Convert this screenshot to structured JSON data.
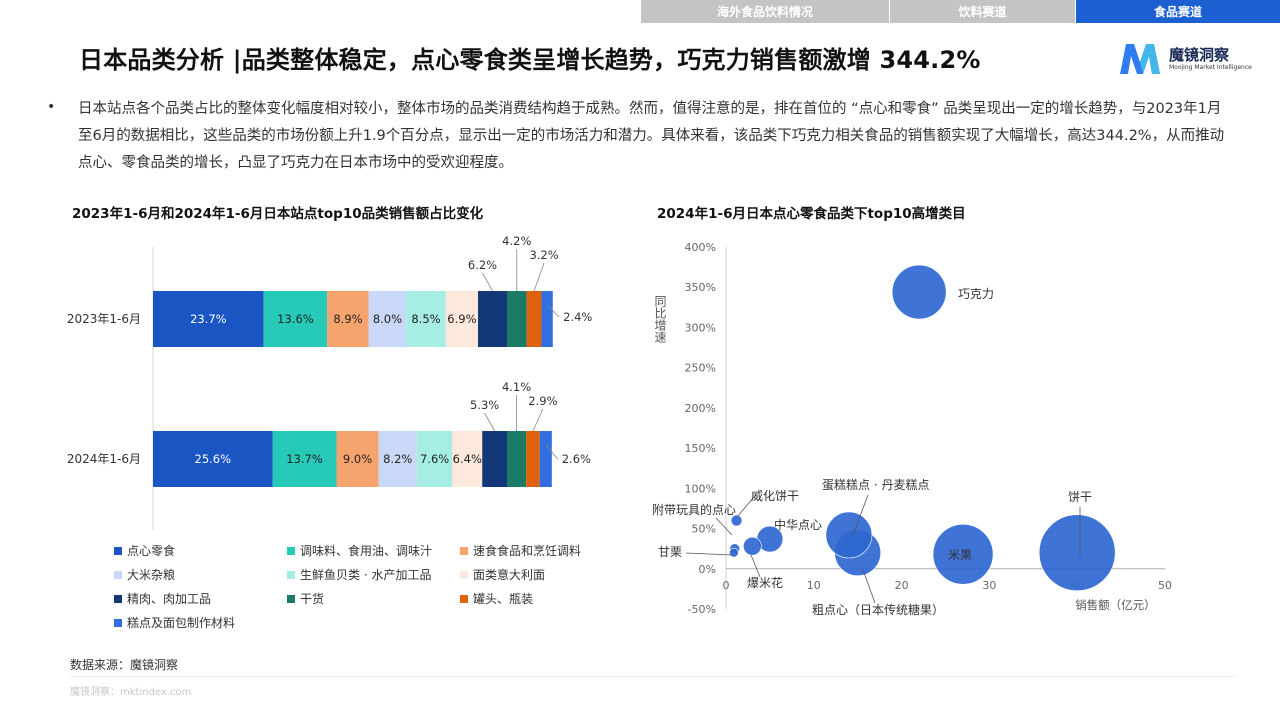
{
  "nav": {
    "tabs": [
      {
        "label": "海外食品饮料情况",
        "active": false
      },
      {
        "label": "饮料赛道",
        "active": false
      },
      {
        "label": "食品赛道",
        "active": true
      }
    ]
  },
  "title": "日本品类分析 |品类整体稳定，点心零食类呈增长趋势，巧克力销售额激增 344.2%",
  "logo": {
    "name": "魔镜洞察",
    "sub": "Moojing Market Intelligence"
  },
  "paragraph": "日本站点各个品类占比的整体变化幅度相对较小，整体市场的品类消费结构趋于成熟。然而，值得注意的是，排在首位的 “点心和零食” 品类呈现出一定的增长趋势，与2023年1月至6月的数据相比，这些品类的市场份额上升1.9个百分点，显示出一定的市场活力和潜力。具体来看，该品类下巧克力相关食品的销售额实现了大幅增长，高达344.2%，从而推动点心、零食品类的增长，凸显了巧克力在日本市场中的受欢迎程度。",
  "bullet": "•",
  "source": "数据来源：魔镜洞察",
  "footer": "魔镜洞察：mktindex.com",
  "colors": {
    "accent": "#1b5fd1",
    "bubble": "#2f67d1"
  },
  "chart_data": [
    {
      "type": "bar",
      "stacked": true,
      "orientation": "horizontal",
      "title": "2023年1-6月和2024年1-6月日本站点top10品类销售额占比变化",
      "categories": [
        "2023年1-6月",
        "2024年1-6月"
      ],
      "series": [
        {
          "name": "点心零食",
          "color": "#1a55c4",
          "values": [
            23.7,
            25.6
          ],
          "labels": [
            "23.7%",
            "25.6%"
          ]
        },
        {
          "name": "调味料、食用油、调味汁",
          "color": "#27c9b8",
          "values": [
            13.6,
            13.7
          ],
          "labels": [
            "13.6%",
            "13.7%"
          ]
        },
        {
          "name": "速食食品和烹饪调料",
          "color": "#f6a46e",
          "values": [
            8.9,
            9.0
          ],
          "labels": [
            "8.9%",
            "9.0%"
          ]
        },
        {
          "name": "大米杂粮",
          "color": "#c9d8f7",
          "values": [
            8.0,
            8.2
          ],
          "labels": [
            "8.0%",
            "8.2%"
          ]
        },
        {
          "name": "生鲜鱼贝类 · 水产加工品",
          "color": "#a6eee4",
          "values": [
            8.5,
            7.6
          ],
          "labels": [
            "8.5%",
            "7.6%"
          ]
        },
        {
          "name": "面类意大利面",
          "color": "#fde8dc",
          "values": [
            6.9,
            6.4
          ],
          "labels": [
            "6.9%",
            "6.4%"
          ]
        },
        {
          "name": "精肉、肉加工品",
          "color": "#143778",
          "values": [
            6.2,
            5.3
          ],
          "labels": [
            "6.2%",
            "5.3%"
          ]
        },
        {
          "name": "干货",
          "color": "#1b7a68",
          "values": [
            4.2,
            4.1
          ],
          "labels": [
            "4.2%",
            "4.1%"
          ]
        },
        {
          "name": "罐头、瓶装",
          "color": "#e0620c",
          "values": [
            3.2,
            2.9
          ],
          "labels": [
            "3.2%",
            "2.9%"
          ]
        },
        {
          "name": "糕点及面包制作材料",
          "color": "#2f6fe0",
          "values": [
            2.4,
            2.6
          ],
          "labels": [
            "2.4%",
            "2.6%"
          ]
        }
      ]
    },
    {
      "type": "scatter",
      "bubble": true,
      "title": "2024年1-6月日本点心零食品类下top10高增类目",
      "xlabel": "销售额（亿元）",
      "ylabel": "同比增速",
      "xlim": [
        0,
        50
      ],
      "ylim": [
        -50,
        400
      ],
      "xticks": [
        0,
        10,
        20,
        30,
        40,
        50
      ],
      "yticks": [
        -50,
        0,
        50,
        100,
        150,
        200,
        250,
        300,
        350,
        400
      ],
      "yticklabels": [
        "-50%",
        "0%",
        "50%",
        "100%",
        "150%",
        "200%",
        "250%",
        "300%",
        "350%",
        "400%"
      ],
      "points": [
        {
          "name": "巧克力",
          "x": 22,
          "y": 344
        },
        {
          "name": "饼干",
          "x": 40,
          "y": 20
        },
        {
          "name": "米果",
          "x": 27,
          "y": 18
        },
        {
          "name": "蛋糕糕点 · 丹麦糕点",
          "x": 14,
          "y": 42
        },
        {
          "name": "粗点心（日本传统糖果）",
          "x": 15,
          "y": 20
        },
        {
          "name": "中华点心",
          "x": 5,
          "y": 37
        },
        {
          "name": "爆米花",
          "x": 3,
          "y": 28
        },
        {
          "name": "威化饼干",
          "x": 1.2,
          "y": 60
        },
        {
          "name": "附带玩具的点心",
          "x": 1,
          "y": 25
        },
        {
          "name": "甘栗",
          "x": 0.9,
          "y": 20
        }
      ]
    }
  ]
}
